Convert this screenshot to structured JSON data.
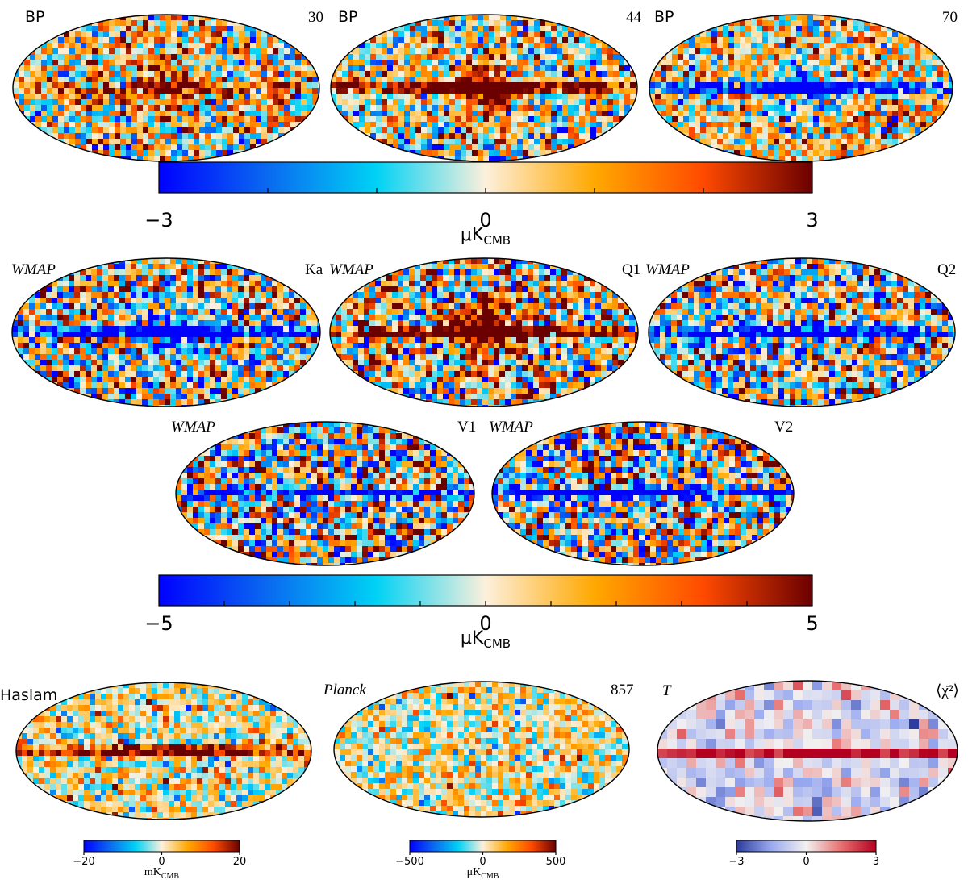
{
  "palettes": {
    "planck": [
      "#0000ff",
      "#0a6af0",
      "#00d2f5",
      "#fdf0dc",
      "#ffa800",
      "#ff4a00",
      "#6a0000"
    ],
    "chi": [
      "#2b3c9c",
      "#9aaaf0",
      "#f2f0f0",
      "#e87070",
      "#b40020"
    ]
  },
  "maps": [
    {
      "id": "bp30",
      "left": "BP",
      "right": "30",
      "lstyle": "sans",
      "rstyle": "serif",
      "seed": 11,
      "plane": 0.35,
      "bulge": 0.45,
      "bias": 0.1,
      "noise": 0.9,
      "palette": "planck"
    },
    {
      "id": "bp44",
      "left": "BP",
      "right": "44",
      "lstyle": "sans",
      "rstyle": "serif",
      "seed": 23,
      "plane": 1.0,
      "bulge": 0.9,
      "bias": 0.0,
      "noise": 0.9,
      "palette": "planck"
    },
    {
      "id": "bp70",
      "left": "BP",
      "right": "70",
      "lstyle": "sans",
      "rstyle": "serif",
      "seed": 37,
      "plane": -1.0,
      "bulge": -0.6,
      "bias": 0.15,
      "noise": 0.8,
      "palette": "planck"
    },
    {
      "id": "ka",
      "left": "WMAP",
      "right": "Ka",
      "lstyle": "italic",
      "rstyle": "serif",
      "seed": 41,
      "plane": -1.0,
      "bulge": -0.5,
      "bias": 0.0,
      "noise": 1.1,
      "palette": "planck"
    },
    {
      "id": "q1",
      "left": "WMAP",
      "right": "Q1",
      "lstyle": "italic",
      "rstyle": "serif",
      "seed": 53,
      "plane": 1.0,
      "bulge": 0.9,
      "bias": 0.1,
      "noise": 1.1,
      "palette": "planck"
    },
    {
      "id": "q2",
      "left": "WMAP",
      "right": "Q2",
      "lstyle": "italic",
      "rstyle": "serif",
      "seed": 67,
      "plane": -1.0,
      "bulge": -0.2,
      "bias": 0.0,
      "noise": 1.1,
      "palette": "planck"
    },
    {
      "id": "v1",
      "left": "WMAP",
      "right": "V1",
      "lstyle": "italic",
      "rstyle": "serif",
      "seed": 79,
      "plane": -0.9,
      "bulge": 0.1,
      "bias": 0.0,
      "noise": 1.2,
      "palette": "planck"
    },
    {
      "id": "v2",
      "left": "WMAP",
      "right": "V2",
      "lstyle": "italic",
      "rstyle": "serif",
      "seed": 83,
      "plane": -0.9,
      "bulge": -0.2,
      "bias": 0.0,
      "noise": 1.2,
      "palette": "planck"
    },
    {
      "id": "haslam",
      "left": "Haslam",
      "right": "",
      "lstyle": "sans",
      "rstyle": "serif",
      "seed": 97,
      "plane": 0.7,
      "bulge": 0.0,
      "bias": 0.05,
      "noise": 0.6,
      "palette": "planck"
    },
    {
      "id": "planck857",
      "left": "Planck",
      "right": "857",
      "lstyle": "italic",
      "rstyle": "serif",
      "seed": 101,
      "plane": 0.0,
      "bulge": 0.0,
      "bias": 0.05,
      "noise": 0.55,
      "palette": "planck"
    },
    {
      "id": "chi2",
      "left": "T",
      "right": "⟨χ̄²⟩",
      "lstyle": "italic",
      "rstyle": "serif",
      "seed": 113,
      "plane": 1.0,
      "bulge": 0.0,
      "bias": -0.1,
      "noise": 0.55,
      "palette": "chi"
    }
  ],
  "colorbars": [
    {
      "id": "cb1",
      "ticks": [
        "−3",
        "0",
        "3"
      ],
      "unit": "μK",
      "unit_sub": "CMB",
      "palette": "planck",
      "minor": 6
    },
    {
      "id": "cb2",
      "ticks": [
        "−5",
        "0",
        "5"
      ],
      "unit": "μK",
      "unit_sub": "CMB",
      "palette": "planck",
      "minor": 10
    },
    {
      "id": "cb3",
      "ticks": [
        "−20",
        "0",
        "20"
      ],
      "unit": "mK",
      "unit_sub": "CMB",
      "palette": "planck",
      "minor": 0
    },
    {
      "id": "cb4",
      "ticks": [
        "−500",
        "0",
        "500"
      ],
      "unit": "μK",
      "unit_sub": "CMB",
      "palette": "planck",
      "minor": 0
    },
    {
      "id": "cb5",
      "ticks": [
        "−3",
        "0",
        "3"
      ],
      "unit": "",
      "unit_sub": "",
      "palette": "chi",
      "minor": 0
    }
  ]
}
